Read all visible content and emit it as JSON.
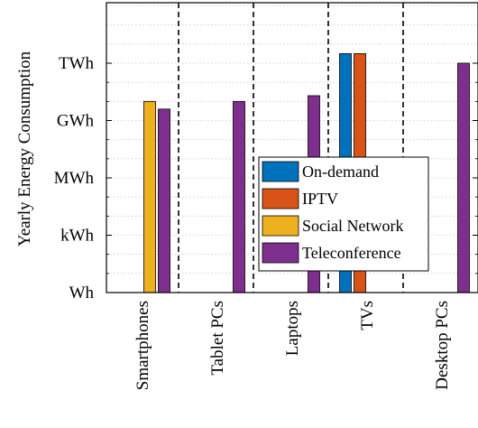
{
  "chart_data": {
    "type": "bar",
    "ylabel": "Yearly Energy Consumption",
    "ylog": true,
    "ylim_log10": [
      3,
      15
    ],
    "yticks": [
      {
        "label": "Wh",
        "log10": 3
      },
      {
        "label": "kWh",
        "log10": 6
      },
      {
        "label": "MWh",
        "log10": 9
      },
      {
        "label": "GWh",
        "log10": 12
      },
      {
        "label": "TWh",
        "log10": 15
      }
    ],
    "categories": [
      "Smartphones",
      "Tablet PCs",
      "Laptops",
      "TVs",
      "Desktop PCs"
    ],
    "series": [
      {
        "name": "On-demand",
        "color": "#0072BD",
        "log10_values": [
          null,
          null,
          null,
          15.5,
          null
        ]
      },
      {
        "name": "IPTV",
        "color": "#D95319",
        "log10_values": [
          null,
          null,
          null,
          15.5,
          null
        ]
      },
      {
        "name": "Social Network",
        "color": "#EDB120",
        "log10_values": [
          13.0,
          null,
          null,
          null,
          null
        ]
      },
      {
        "name": "Teleconference",
        "color": "#7E2F8E",
        "log10_values": [
          12.6,
          13.0,
          13.3,
          null,
          15.0
        ]
      }
    ],
    "grid": "y-minor-dotted",
    "legend_position": "center-right"
  }
}
